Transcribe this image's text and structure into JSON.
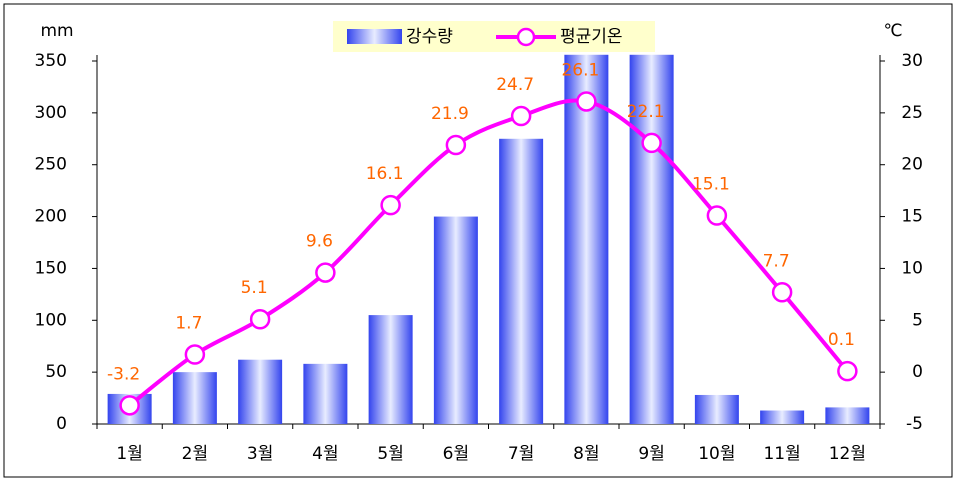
{
  "chart_data": {
    "type": "bar",
    "y_label": "mm",
    "y2_label": "℃",
    "categories": [
      "1월",
      "2월",
      "3월",
      "4월",
      "5월",
      "6월",
      "7월",
      "8월",
      "9월",
      "10월",
      "11월",
      "12월"
    ],
    "series": [
      {
        "name": "강수량",
        "type": "bar",
        "axis": "y",
        "color": "#3344ee",
        "values": [
          29,
          50,
          62,
          58,
          105,
          200,
          275,
          356,
          356,
          28,
          13,
          16
        ]
      },
      {
        "name": "평균기온",
        "type": "line",
        "axis": "y2",
        "color": "#ff00ff",
        "label_color": "#ff6600",
        "values": [
          -3.2,
          1.7,
          5.1,
          9.6,
          16.1,
          21.9,
          24.7,
          26.1,
          22.1,
          15.1,
          7.7,
          0.1
        ]
      }
    ],
    "ylim": [
      0,
      350
    ],
    "yticks": [
      0,
      50,
      100,
      150,
      200,
      250,
      300,
      350
    ],
    "y2lim": [
      -5,
      30
    ],
    "y2ticks": [
      -5,
      0,
      5,
      10,
      15,
      20,
      25,
      30
    ],
    "legend": "top"
  }
}
